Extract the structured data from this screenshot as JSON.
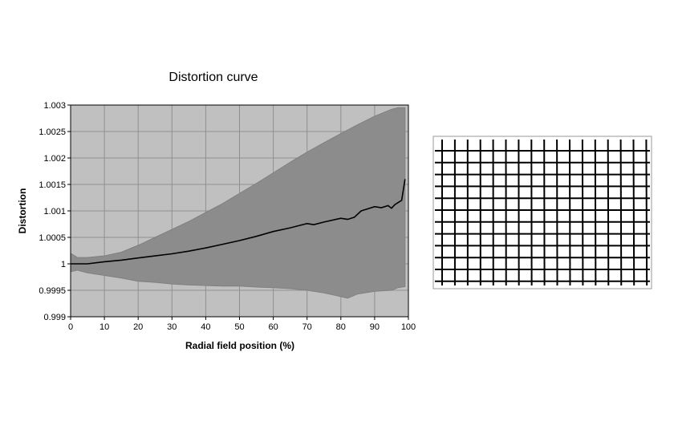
{
  "chart_data": {
    "type": "area",
    "title": "Distortion curve",
    "xlabel": "Radial field position (%)",
    "ylabel": "Distortion",
    "xlim": [
      0,
      100
    ],
    "ylim": [
      0.999,
      1.003
    ],
    "xticks": [
      0,
      10,
      20,
      30,
      40,
      50,
      60,
      70,
      80,
      90,
      100
    ],
    "yticks": [
      0.999,
      0.9995,
      1,
      1.0005,
      1.001,
      1.0015,
      1.002,
      1.0025,
      1.003
    ],
    "ytick_labels": [
      "0.999",
      "0.9995",
      "1",
      "1.0005",
      "1.001",
      "1.0015",
      "1.002",
      "1.0025",
      "1.003"
    ],
    "grid": true,
    "legend": "none",
    "colors": {
      "plot_background": "#c0c0c0",
      "band_fill": "#8c8c8c",
      "band_edge": "#808080",
      "mean_line": "#000000",
      "gridlines": "#8f8f8f"
    },
    "series": [
      {
        "role": "upper-bound",
        "x": [
          0,
          2,
          5,
          10,
          15,
          20,
          25,
          30,
          35,
          40,
          45,
          50,
          55,
          60,
          65,
          70,
          75,
          80,
          85,
          90,
          95,
          97,
          99
        ],
        "y": [
          1.0002,
          1.00012,
          1.00012,
          1.00015,
          1.00022,
          1.00035,
          1.0005,
          1.00065,
          1.0008,
          1.00097,
          1.00114,
          1.00133,
          1.00152,
          1.00172,
          1.00192,
          1.00211,
          1.00229,
          1.00246,
          1.00263,
          1.00279,
          1.00292,
          1.00295,
          1.00295
        ]
      },
      {
        "role": "lower-bound",
        "x": [
          0,
          2,
          5,
          10,
          15,
          20,
          25,
          30,
          35,
          40,
          45,
          50,
          55,
          60,
          65,
          70,
          75,
          80,
          82,
          85,
          90,
          95,
          97,
          99
        ],
        "y": [
          0.99985,
          0.99988,
          0.99983,
          0.99978,
          0.99973,
          0.99967,
          0.99965,
          0.99962,
          0.9996,
          0.99959,
          0.99958,
          0.99958,
          0.99956,
          0.99955,
          0.99953,
          0.9995,
          0.99945,
          0.99938,
          0.99935,
          0.99943,
          0.99948,
          0.9995,
          0.99955,
          0.99957
        ]
      },
      {
        "role": "mean",
        "x": [
          0,
          5,
          10,
          15,
          20,
          25,
          30,
          35,
          40,
          45,
          50,
          55,
          60,
          65,
          70,
          72,
          75,
          80,
          82,
          84,
          86,
          88,
          90,
          92,
          94,
          95,
          96,
          98,
          99
        ],
        "y": [
          1.0,
          1.0,
          1.00004,
          1.00007,
          1.00011,
          1.00015,
          1.00019,
          1.00024,
          1.0003,
          1.00037,
          1.00044,
          1.00052,
          1.00061,
          1.00068,
          1.00076,
          1.00074,
          1.00079,
          1.00086,
          1.00084,
          1.00088,
          1.001,
          1.00104,
          1.00108,
          1.00106,
          1.0011,
          1.00105,
          1.00112,
          1.0012,
          1.0016
        ]
      }
    ]
  },
  "grid_image": {
    "cols": 17,
    "rows": 12
  }
}
